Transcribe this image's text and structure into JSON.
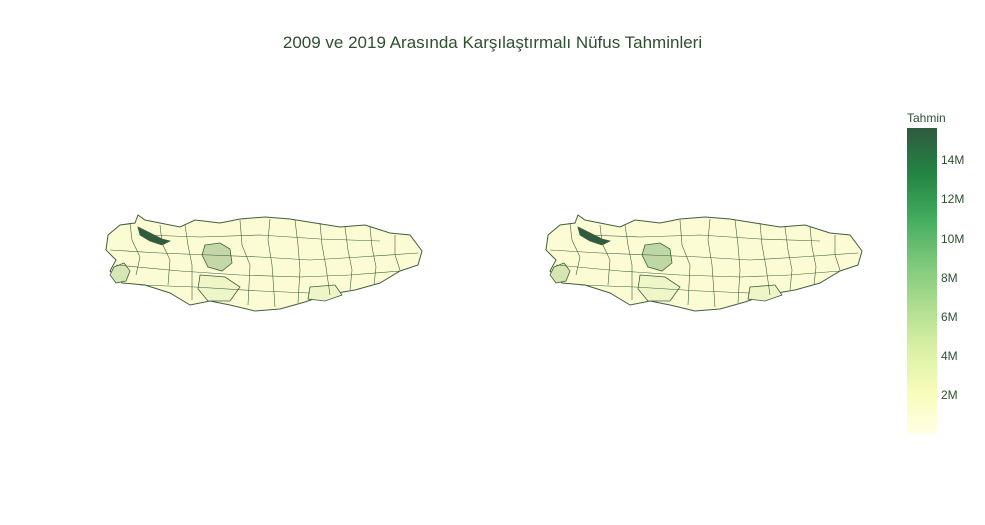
{
  "title": "2009 ve 2019 Arasında Karşılaştırmalı Nüfus Tahminleri",
  "colorbar": {
    "title": "Tahmin",
    "ticks": [
      "14M",
      "12M",
      "10M",
      "8M",
      "6M",
      "4M",
      "2M"
    ],
    "tick_values": [
      14000000,
      12000000,
      10000000,
      8000000,
      6000000,
      4000000,
      2000000
    ],
    "range": [
      0,
      15500000
    ],
    "colors": [
      "#ffffe5",
      "#f7fcb9",
      "#d9f0a3",
      "#addd8e",
      "#78c679",
      "#41ab5d",
      "#238443",
      "#2f5a3f"
    ]
  },
  "maps": [
    {
      "name": "2009",
      "colors": {
        "base": "#fbfcd4",
        "istanbul": "#2f5a3f",
        "ankara": "#c3d8a6",
        "izmir": "#d8e6b5",
        "mid": "#eef5c7",
        "outline": "#3f5f3f"
      }
    },
    {
      "name": "2019",
      "colors": {
        "base": "#fbfcd4",
        "istanbul": "#2f5a3f",
        "ankara": "#bfd7a2",
        "izmir": "#d6e5b2",
        "mid": "#eef5c7",
        "outline": "#3f5f3f"
      }
    }
  ]
}
